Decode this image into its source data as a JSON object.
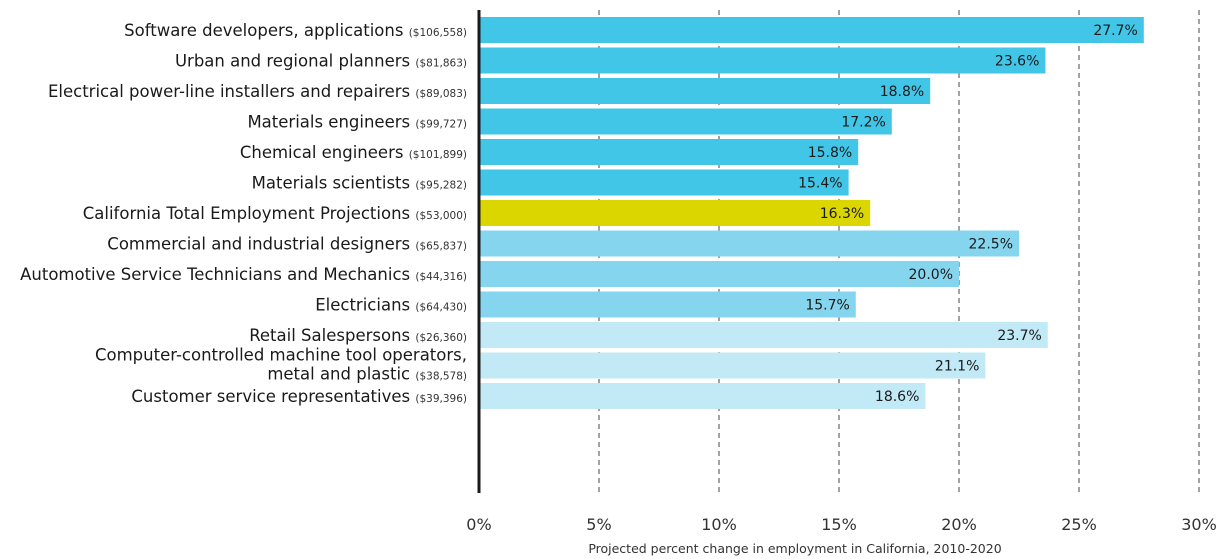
{
  "chart_data": {
    "type": "bar",
    "orientation": "horizontal",
    "categories": [
      {
        "label": [
          "Software developers, applications"
        ],
        "salary": "($106,558)",
        "value": 27.7,
        "value_label": "27.7%",
        "color": "#41c6e8"
      },
      {
        "label": [
          "Urban and regional planners"
        ],
        "salary": "($81,863)",
        "value": 23.6,
        "value_label": "23.6%",
        "color": "#41c6e8"
      },
      {
        "label": [
          "Electrical power-line installers and repairers"
        ],
        "salary": "($89,083)",
        "value": 18.8,
        "value_label": "18.8%",
        "color": "#41c6e8"
      },
      {
        "label": [
          "Materials engineers"
        ],
        "salary": "($99,727)",
        "value": 17.2,
        "value_label": "17.2%",
        "color": "#41c6e8"
      },
      {
        "label": [
          "Chemical engineers"
        ],
        "salary": "($101,899)",
        "value": 15.8,
        "value_label": "15.8%",
        "color": "#41c6e8"
      },
      {
        "label": [
          "Materials scientists"
        ],
        "salary": "($95,282)",
        "value": 15.4,
        "value_label": "15.4%",
        "color": "#41c6e8"
      },
      {
        "label": [
          "California Total Employment Projections"
        ],
        "salary": "($53,000)",
        "value": 16.3,
        "value_label": "16.3%",
        "color": "#dcd600"
      },
      {
        "label": [
          "Commercial and industrial designers"
        ],
        "salary": "($65,837)",
        "value": 22.5,
        "value_label": "22.5%",
        "color": "#86d5ef"
      },
      {
        "label": [
          "Automotive Service Technicians and Mechanics"
        ],
        "salary": "($44,316)",
        "value": 20.0,
        "value_label": "20.0%",
        "color": "#86d5ef"
      },
      {
        "label": [
          "Electricians"
        ],
        "salary": "($64,430)",
        "value": 15.7,
        "value_label": "15.7%",
        "color": "#86d5ef"
      },
      {
        "label": [
          "Retail Salespersons"
        ],
        "salary": "($26,360)",
        "value": 23.7,
        "value_label": "23.7%",
        "color": "#c2e9f6"
      },
      {
        "label": [
          "Computer-controlled machine tool operators,",
          "metal and plastic"
        ],
        "salary": "($38,578)",
        "value": 21.1,
        "value_label": "21.1%",
        "color": "#c2e9f6"
      },
      {
        "label": [
          "Customer service representatives"
        ],
        "salary": "($39,396)",
        "value": 18.6,
        "value_label": "18.6%",
        "color": "#c2e9f6"
      }
    ],
    "xlim": [
      0,
      30
    ],
    "xticks": [
      0,
      5,
      10,
      15,
      20,
      25,
      30
    ],
    "xtick_labels": [
      "0%",
      "5%",
      "10%",
      "15%",
      "20%",
      "25%",
      "30%"
    ],
    "xlabel": "Projected percent change in employment in California, 2010-2020",
    "grid": "vertical-dashed",
    "axis_color": "#1a1a1a",
    "grid_color": "#444444"
  }
}
